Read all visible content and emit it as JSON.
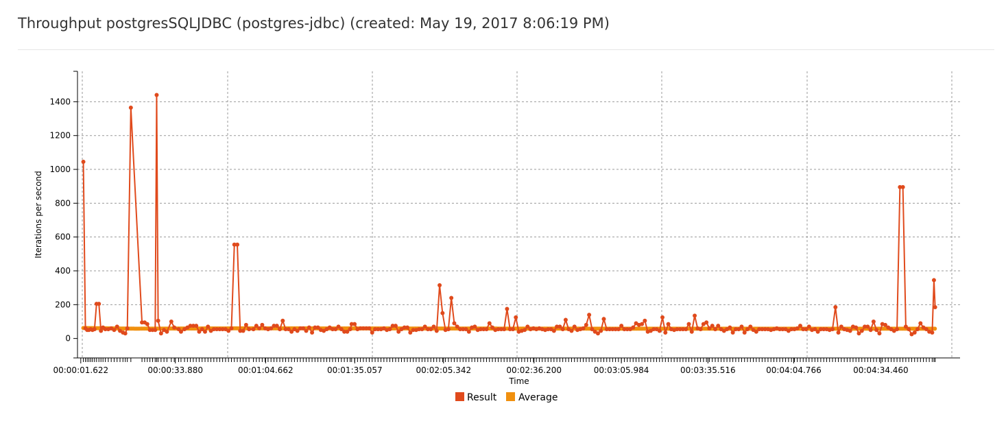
{
  "page": {
    "title": "Throughput postgresSQLJDBC (postgres-jdbc) (created: May 19, 2017 8:06:19 PM)"
  },
  "chart_data": {
    "type": "line",
    "title": "Throughput postgresSQLJDBC (postgres-jdbc) (created: May 19, 2017 8:06:19 PM)",
    "xlabel": "Time",
    "ylabel": "Iterations per second",
    "x_unit": "seconds elapsed",
    "xlim": [
      0.5,
      301.5
    ],
    "ylim": [
      -115,
      1580
    ],
    "y_ticks": [
      0,
      200,
      400,
      600,
      800,
      1000,
      1200,
      1400
    ],
    "x_ticks": [
      {
        "t": 1.622,
        "label": "00:00:01.622"
      },
      {
        "t": 33.88,
        "label": "00:00:33.880"
      },
      {
        "t": 64.662,
        "label": "00:01:04.662"
      },
      {
        "t": 95.057,
        "label": "00:01:35.057"
      },
      {
        "t": 125.342,
        "label": "00:02:05.342"
      },
      {
        "t": 156.2,
        "label": "00:02:36.200"
      },
      {
        "t": 185.984,
        "label": "00:03:05.984"
      },
      {
        "t": 215.516,
        "label": "00:03:35.516"
      },
      {
        "t": 244.766,
        "label": "00:04:04.766"
      },
      {
        "t": 274.46,
        "label": "00:04:34.460"
      }
    ],
    "grid": true,
    "legend_position": "bottom-center",
    "colors": {
      "Result": "#e04a1c",
      "Average": "#f0900f"
    },
    "series": [
      {
        "name": "Result",
        "color": "#e04a1c",
        "points": [
          [
            2.5,
            1045
          ],
          [
            3.2,
            60
          ],
          [
            3.8,
            50
          ],
          [
            4.4,
            50
          ],
          [
            5.0,
            55
          ],
          [
            5.6,
            50
          ],
          [
            6.3,
            55
          ],
          [
            7.0,
            205
          ],
          [
            7.8,
            205
          ],
          [
            8.5,
            45
          ],
          [
            9.2,
            65
          ],
          [
            10.0,
            55
          ],
          [
            11.0,
            55
          ],
          [
            12.0,
            60
          ],
          [
            13.0,
            50
          ],
          [
            14.0,
            70
          ],
          [
            15.0,
            45
          ],
          [
            16.0,
            35
          ],
          [
            16.8,
            30
          ],
          [
            17.5,
            60
          ],
          [
            18.7,
            1365
          ],
          [
            22.5,
            95
          ],
          [
            23.4,
            95
          ],
          [
            24.3,
            85
          ],
          [
            25.2,
            50
          ],
          [
            26.1,
            50
          ],
          [
            27.0,
            50
          ],
          [
            27.5,
            1440
          ],
          [
            28.0,
            105
          ],
          [
            29.0,
            30
          ],
          [
            30.0,
            50
          ],
          [
            31.0,
            40
          ],
          [
            32.5,
            100
          ],
          [
            33.5,
            65
          ],
          [
            35.0,
            55
          ],
          [
            35.8,
            40
          ],
          [
            37.0,
            55
          ],
          [
            38.0,
            65
          ],
          [
            39.0,
            75
          ],
          [
            40.0,
            75
          ],
          [
            41.0,
            75
          ],
          [
            42.0,
            40
          ],
          [
            43.0,
            55
          ],
          [
            44.0,
            40
          ],
          [
            45.0,
            70
          ],
          [
            46.0,
            45
          ],
          [
            47.0,
            55
          ],
          [
            48.0,
            55
          ],
          [
            49.0,
            55
          ],
          [
            50.0,
            55
          ],
          [
            51.0,
            55
          ],
          [
            52.0,
            45
          ],
          [
            53.0,
            60
          ],
          [
            54.0,
            555
          ],
          [
            55.0,
            555
          ],
          [
            56.0,
            45
          ],
          [
            57.0,
            45
          ],
          [
            58.0,
            80
          ],
          [
            59.0,
            55
          ],
          [
            60.5,
            55
          ],
          [
            61.5,
            75
          ],
          [
            62.5,
            60
          ],
          [
            63.5,
            80
          ],
          [
            64.5,
            60
          ],
          [
            65.5,
            55
          ],
          [
            66.5,
            60
          ],
          [
            67.5,
            75
          ],
          [
            68.5,
            75
          ],
          [
            69.5,
            55
          ],
          [
            70.5,
            105
          ],
          [
            71.5,
            55
          ],
          [
            72.5,
            55
          ],
          [
            73.5,
            40
          ],
          [
            74.5,
            55
          ],
          [
            75.5,
            45
          ],
          [
            76.5,
            60
          ],
          [
            77.5,
            60
          ],
          [
            78.5,
            45
          ],
          [
            79.5,
            65
          ],
          [
            80.5,
            35
          ],
          [
            81.5,
            65
          ],
          [
            82.5,
            65
          ],
          [
            83.5,
            50
          ],
          [
            84.5,
            45
          ],
          [
            85.5,
            55
          ],
          [
            86.5,
            65
          ],
          [
            87.5,
            55
          ],
          [
            88.5,
            55
          ],
          [
            89.5,
            70
          ],
          [
            90.5,
            55
          ],
          [
            91.5,
            40
          ],
          [
            92.5,
            40
          ],
          [
            93.5,
            55
          ],
          [
            94.0,
            85
          ],
          [
            95.0,
            85
          ],
          [
            96.0,
            55
          ],
          [
            97.0,
            60
          ],
          [
            98.0,
            60
          ],
          [
            99.0,
            60
          ],
          [
            100.0,
            60
          ],
          [
            101.0,
            35
          ],
          [
            102.0,
            55
          ],
          [
            103.0,
            55
          ],
          [
            104.0,
            55
          ],
          [
            105.0,
            60
          ],
          [
            106.0,
            50
          ],
          [
            107.0,
            55
          ],
          [
            108.0,
            75
          ],
          [
            109.0,
            75
          ],
          [
            110.0,
            40
          ],
          [
            111.0,
            55
          ],
          [
            112.0,
            65
          ],
          [
            113.0,
            65
          ],
          [
            114.0,
            35
          ],
          [
            115.0,
            50
          ],
          [
            116.0,
            50
          ],
          [
            117.0,
            55
          ],
          [
            118.0,
            55
          ],
          [
            119.0,
            70
          ],
          [
            120.0,
            55
          ],
          [
            121.0,
            55
          ],
          [
            122.0,
            70
          ],
          [
            123.0,
            45
          ],
          [
            124.0,
            315
          ],
          [
            125.0,
            150
          ],
          [
            126.0,
            50
          ],
          [
            127.0,
            55
          ],
          [
            128.0,
            240
          ],
          [
            129.0,
            90
          ],
          [
            130.0,
            70
          ],
          [
            131.0,
            55
          ],
          [
            132.0,
            55
          ],
          [
            133.0,
            55
          ],
          [
            134.0,
            40
          ],
          [
            135.0,
            65
          ],
          [
            136.0,
            70
          ],
          [
            137.0,
            50
          ],
          [
            138.0,
            55
          ],
          [
            139.0,
            55
          ],
          [
            140.0,
            55
          ],
          [
            141.0,
            90
          ],
          [
            142.0,
            65
          ],
          [
            143.0,
            50
          ],
          [
            144.0,
            55
          ],
          [
            145.0,
            55
          ],
          [
            146.0,
            55
          ],
          [
            147.0,
            175
          ],
          [
            148.0,
            55
          ],
          [
            149.0,
            55
          ],
          [
            150.0,
            125
          ],
          [
            151.0,
            40
          ],
          [
            152.0,
            45
          ],
          [
            153.0,
            50
          ],
          [
            154.0,
            70
          ],
          [
            155.0,
            55
          ],
          [
            156.0,
            60
          ],
          [
            157.0,
            55
          ],
          [
            158.0,
            60
          ],
          [
            159.0,
            55
          ],
          [
            160.0,
            50
          ],
          [
            161.0,
            55
          ],
          [
            162.0,
            55
          ],
          [
            163.0,
            45
          ],
          [
            164.0,
            70
          ],
          [
            165.0,
            70
          ],
          [
            166.0,
            55
          ],
          [
            167.0,
            110
          ],
          [
            168.0,
            55
          ],
          [
            169.0,
            45
          ],
          [
            170.0,
            70
          ],
          [
            171.0,
            50
          ],
          [
            172.0,
            55
          ],
          [
            173.0,
            60
          ],
          [
            174.0,
            80
          ],
          [
            175.0,
            140
          ],
          [
            176.0,
            55
          ],
          [
            177.0,
            40
          ],
          [
            178.0,
            30
          ],
          [
            179.0,
            45
          ],
          [
            180.0,
            115
          ],
          [
            181.0,
            55
          ],
          [
            182.0,
            55
          ],
          [
            183.0,
            55
          ],
          [
            184.0,
            55
          ],
          [
            185.0,
            55
          ],
          [
            186.0,
            75
          ],
          [
            187.0,
            55
          ],
          [
            188.0,
            55
          ],
          [
            189.0,
            55
          ],
          [
            190.0,
            65
          ],
          [
            191.0,
            90
          ],
          [
            192.0,
            80
          ],
          [
            193.0,
            85
          ],
          [
            194.0,
            105
          ],
          [
            195.0,
            40
          ],
          [
            196.0,
            45
          ],
          [
            197.0,
            55
          ],
          [
            198.0,
            55
          ],
          [
            199.0,
            45
          ],
          [
            200.0,
            125
          ],
          [
            201.0,
            35
          ],
          [
            202.0,
            85
          ],
          [
            203.0,
            55
          ],
          [
            204.0,
            50
          ],
          [
            205.0,
            55
          ],
          [
            206.0,
            55
          ],
          [
            207.0,
            55
          ],
          [
            208.0,
            55
          ],
          [
            209.0,
            85
          ],
          [
            210.0,
            40
          ],
          [
            211.0,
            135
          ],
          [
            212.0,
            60
          ],
          [
            213.0,
            55
          ],
          [
            214.0,
            85
          ],
          [
            215.0,
            95
          ],
          [
            216.0,
            60
          ],
          [
            217.0,
            75
          ],
          [
            218.0,
            55
          ],
          [
            219.0,
            75
          ],
          [
            220.0,
            55
          ],
          [
            221.0,
            45
          ],
          [
            222.0,
            55
          ],
          [
            223.0,
            65
          ],
          [
            224.0,
            35
          ],
          [
            225.0,
            55
          ],
          [
            226.0,
            55
          ],
          [
            227.0,
            70
          ],
          [
            228.0,
            35
          ],
          [
            229.0,
            55
          ],
          [
            230.0,
            70
          ],
          [
            231.0,
            50
          ],
          [
            232.0,
            40
          ],
          [
            233.0,
            55
          ],
          [
            234.0,
            55
          ],
          [
            235.0,
            55
          ],
          [
            236.0,
            55
          ],
          [
            237.0,
            50
          ],
          [
            238.0,
            55
          ],
          [
            239.0,
            60
          ],
          [
            240.0,
            55
          ],
          [
            241.0,
            55
          ],
          [
            242.0,
            55
          ],
          [
            243.0,
            45
          ],
          [
            244.0,
            55
          ],
          [
            245.0,
            55
          ],
          [
            246.0,
            60
          ],
          [
            247.0,
            75
          ],
          [
            248.0,
            55
          ],
          [
            249.0,
            55
          ],
          [
            250.0,
            70
          ],
          [
            251.0,
            50
          ],
          [
            252.0,
            55
          ],
          [
            253.0,
            40
          ],
          [
            254.0,
            55
          ],
          [
            255.0,
            55
          ],
          [
            256.0,
            55
          ],
          [
            257.0,
            50
          ],
          [
            258.0,
            55
          ],
          [
            259.0,
            185
          ],
          [
            260.0,
            35
          ],
          [
            261.0,
            70
          ],
          [
            262.0,
            55
          ],
          [
            263.0,
            50
          ],
          [
            264.0,
            45
          ],
          [
            265.0,
            70
          ],
          [
            266.0,
            65
          ],
          [
            267.0,
            30
          ],
          [
            268.0,
            45
          ],
          [
            269.0,
            70
          ],
          [
            270.0,
            70
          ],
          [
            271.0,
            50
          ],
          [
            272.0,
            100
          ],
          [
            273.0,
            50
          ],
          [
            274.0,
            30
          ],
          [
            275.0,
            85
          ],
          [
            276.0,
            80
          ],
          [
            277.0,
            65
          ],
          [
            278.0,
            55
          ],
          [
            279.0,
            45
          ],
          [
            280.0,
            55
          ],
          [
            281.0,
            895
          ],
          [
            282.0,
            895
          ],
          [
            283.0,
            70
          ],
          [
            284.0,
            55
          ],
          [
            285.0,
            25
          ],
          [
            286.0,
            35
          ],
          [
            287.0,
            55
          ],
          [
            288.0,
            90
          ],
          [
            289.0,
            65
          ],
          [
            290.0,
            55
          ],
          [
            291.0,
            40
          ],
          [
            292.0,
            35
          ],
          [
            292.6,
            345
          ],
          [
            293.0,
            185
          ]
        ]
      },
      {
        "name": "Average",
        "color": "#f0900f",
        "step": 0.55,
        "start": 2.5,
        "end": 293.0,
        "values_profile": [
          [
            2.5,
            62
          ],
          [
            20,
            58
          ],
          [
            60,
            60
          ],
          [
            120,
            59
          ],
          [
            180,
            58
          ],
          [
            240,
            58
          ],
          [
            293,
            58
          ]
        ]
      }
    ]
  },
  "legend": {
    "items": [
      {
        "label": "Result",
        "color": "#e04a1c"
      },
      {
        "label": "Average",
        "color": "#f0900f"
      }
    ]
  }
}
